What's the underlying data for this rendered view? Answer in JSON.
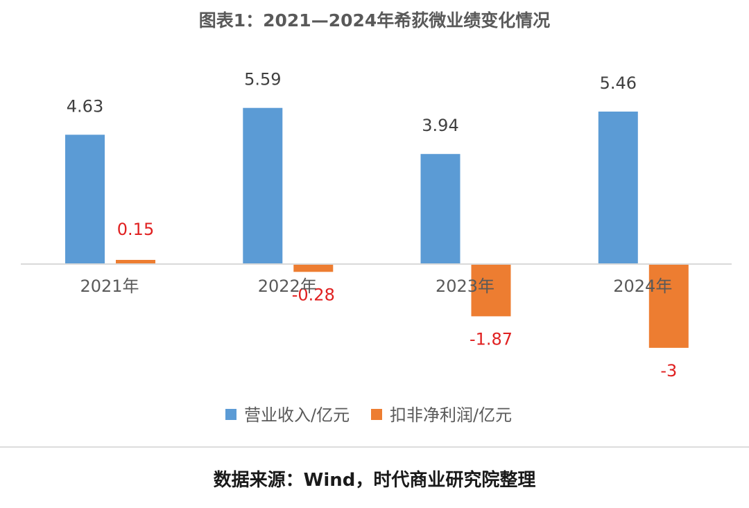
{
  "chart_data": {
    "type": "bar",
    "title": "图表1：2021—2024年希荻微业绩变化情况",
    "categories": [
      "2021年",
      "2022年",
      "2023年",
      "2024年"
    ],
    "series": [
      {
        "name": "营业收入/亿元",
        "values": [
          4.63,
          5.59,
          3.94,
          5.46
        ],
        "labels": [
          "4.63",
          "5.59",
          "3.94",
          "5.46"
        ],
        "color": "#5B9BD5",
        "label_color": "#404040"
      },
      {
        "name": "扣非净利润/亿元",
        "values": [
          0.15,
          -0.28,
          -1.87,
          -3
        ],
        "labels": [
          "0.15",
          "-0.28",
          "-1.87",
          "-3"
        ],
        "color": "#ED7D31",
        "label_color": "#E02020"
      }
    ],
    "ylim": [
      -5.5,
      8.0
    ],
    "grid": false,
    "legend_position": "bottom",
    "source": "数据来源：Wind，时代商业研究院整理"
  },
  "colors": {
    "axis": "#D9D9D9",
    "divider": "#D0D0D0"
  }
}
